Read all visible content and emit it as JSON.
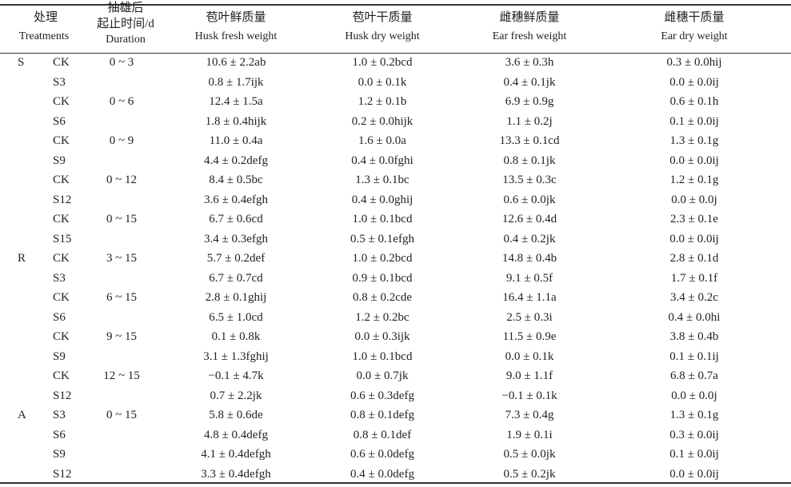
{
  "table": {
    "header": {
      "treatments": [
        "处理",
        "Treatments"
      ],
      "duration": [
        "抽雄后",
        "起止时间/d",
        "Duration"
      ],
      "columns": [
        [
          "苞叶鲜质量",
          "Husk fresh weight"
        ],
        [
          "苞叶干质量",
          "Husk dry weight"
        ],
        [
          "雌穗鲜质量",
          "Ear fresh weight"
        ],
        [
          "雌穗干质量",
          "Ear dry weight"
        ]
      ]
    },
    "rows": [
      {
        "group": "S",
        "treatment": "CK",
        "duration": "0 ~ 3",
        "cells": [
          "10.6 ± 2.2ab",
          "1.0 ± 0.2bcd",
          "3.6 ± 0.3h",
          "0.3 ± 0.0hij"
        ]
      },
      {
        "treatment": "S3",
        "cells": [
          "0.8 ± 1.7ijk",
          "0.0 ± 0.1k",
          "0.4 ± 0.1jk",
          "0.0 ± 0.0ij"
        ]
      },
      {
        "treatment": "CK",
        "duration": "0 ~ 6",
        "cells": [
          "12.4 ± 1.5a",
          "1.2 ± 0.1b",
          "6.9 ± 0.9g",
          "0.6 ± 0.1h"
        ]
      },
      {
        "treatment": "S6",
        "cells": [
          "1.8 ± 0.4hijk",
          "0.2 ± 0.0hijk",
          "1.1 ± 0.2j",
          "0.1 ± 0.0ij"
        ]
      },
      {
        "treatment": "CK",
        "duration": "0 ~ 9",
        "cells": [
          "11.0 ± 0.4a",
          "1.6 ± 0.0a",
          "13.3 ± 0.1cd",
          "1.3 ± 0.1g"
        ]
      },
      {
        "treatment": "S9",
        "cells": [
          "4.4 ± 0.2defg",
          "0.4 ± 0.0fghi",
          "0.8 ± 0.1jk",
          "0.0 ± 0.0ij"
        ]
      },
      {
        "treatment": "CK",
        "duration": "0 ~ 12",
        "cells": [
          "8.4 ± 0.5bc",
          "1.3 ± 0.1bc",
          "13.5 ± 0.3c",
          "1.2 ± 0.1g"
        ]
      },
      {
        "treatment": "S12",
        "cells": [
          "3.6 ± 0.4efgh",
          "0.4 ± 0.0ghij",
          "0.6 ± 0.0jk",
          "0.0 ± 0.0j"
        ]
      },
      {
        "treatment": "CK",
        "duration": "0 ~ 15",
        "cells": [
          "6.7 ± 0.6cd",
          "1.0 ± 0.1bcd",
          "12.6 ± 0.4d",
          "2.3 ± 0.1e"
        ]
      },
      {
        "treatment": "S15",
        "cells": [
          "3.4 ± 0.3efgh",
          "0.5 ± 0.1efgh",
          "0.4 ± 0.2jk",
          "0.0 ± 0.0ij"
        ]
      },
      {
        "group": "R",
        "treatment": "CK",
        "duration": "3 ~ 15",
        "cells": [
          "5.7 ± 0.2def",
          "1.0 ± 0.2bcd",
          "14.8 ± 0.4b",
          "2.8 ± 0.1d"
        ]
      },
      {
        "treatment": "S3",
        "cells": [
          "6.7 ± 0.7cd",
          "0.9 ± 0.1bcd",
          "9.1 ± 0.5f",
          "1.7 ± 0.1f"
        ]
      },
      {
        "treatment": "CK",
        "duration": "6 ~ 15",
        "cells": [
          "2.8 ± 0.1ghij",
          "0.8 ± 0.2cde",
          "16.4 ± 1.1a",
          "3.4 ± 0.2c"
        ]
      },
      {
        "treatment": "S6",
        "cells": [
          "6.5 ± 1.0cd",
          "1.2 ± 0.2bc",
          "2.5 ± 0.3i",
          "0.4 ± 0.0hi"
        ]
      },
      {
        "treatment": "CK",
        "duration": "9 ~ 15",
        "cells": [
          "0.1 ± 0.8k",
          "0.0 ± 0.3ijk",
          "11.5 ± 0.9e",
          "3.8 ± 0.4b"
        ]
      },
      {
        "treatment": "S9",
        "cells": [
          "3.1 ± 1.3fghij",
          "1.0 ± 0.1bcd",
          "0.0 ± 0.1k",
          "0.1 ± 0.1ij"
        ]
      },
      {
        "treatment": "CK",
        "duration": "12 ~ 15",
        "cells": [
          "−0.1 ± 4.7k",
          "0.0 ± 0.7jk",
          "9.0 ± 1.1f",
          "6.8 ± 0.7a"
        ]
      },
      {
        "treatment": "S12",
        "cells": [
          "0.7 ± 2.2jk",
          "0.6 ± 0.3defg",
          "−0.1 ± 0.1k",
          "0.0 ± 0.0j"
        ]
      },
      {
        "group": "A",
        "treatment": "S3",
        "duration": "0 ~ 15",
        "cells": [
          "5.8 ± 0.6de",
          "0.8 ± 0.1defg",
          "7.3 ± 0.4g",
          "1.3 ± 0.1g"
        ]
      },
      {
        "treatment": "S6",
        "cells": [
          "4.8 ± 0.4defg",
          "0.8 ± 0.1def",
          "1.9 ± 0.1i",
          "0.3 ± 0.0ij"
        ]
      },
      {
        "treatment": "S9",
        "cells": [
          "4.1 ± 0.4defgh",
          "0.6 ± 0.0defg",
          "0.5 ± 0.0jk",
          "0.1 ± 0.0ij"
        ]
      },
      {
        "treatment": "S12",
        "cells": [
          "3.3 ± 0.4defgh",
          "0.4 ± 0.0defg",
          "0.5 ± 0.2jk",
          "0.0 ± 0.0ij"
        ]
      }
    ]
  }
}
